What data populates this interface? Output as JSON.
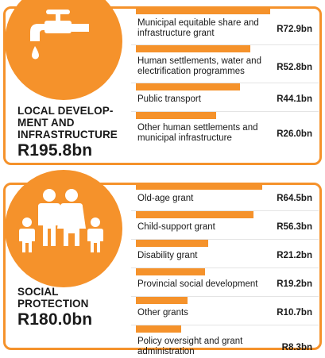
{
  "colors": {
    "accent": "#f5922b",
    "text": "#1a1a1a",
    "divider": "#e4e4e4"
  },
  "local_development": {
    "icon": "water-tap-icon",
    "heading_lines": [
      "LOCAL DEVELOP-",
      "MENT AND",
      "INFRASTRUCTURE"
    ],
    "total": "R195.8bn",
    "items": [
      {
        "label": "Municipal equitable share and infrastructure grant",
        "value": "R72.9bn",
        "amount": 72.9
      },
      {
        "label": "Human settlements, water and electrification programmes",
        "value": "R52.8bn",
        "amount": 52.8
      },
      {
        "label": "Public transport",
        "value": "R44.1bn",
        "amount": 44.1
      },
      {
        "label": "Other human settlements and municipal infrastructure",
        "value": "R26.0bn",
        "amount": 26.0
      }
    ]
  },
  "social_protection": {
    "icon": "family-icon",
    "heading_lines": [
      "SOCIAL",
      "PROTECTION"
    ],
    "total": "R180.0bn",
    "items": [
      {
        "label": "Old-age grant",
        "value": "R64.5bn",
        "amount": 64.5
      },
      {
        "label": "Child-support grant",
        "value": "R56.3bn",
        "amount": 56.3
      },
      {
        "label": "Disability grant",
        "value": "R21.2bn",
        "amount": 21.2
      },
      {
        "label": "Provincial social development",
        "value": "R19.2bn",
        "amount": 19.2
      },
      {
        "label": "Other grants",
        "value": "R10.7bn",
        "amount": 10.7
      },
      {
        "label": "Policy oversight and grant administration",
        "value": "R8.3bn",
        "amount": 8.3
      }
    ]
  }
}
